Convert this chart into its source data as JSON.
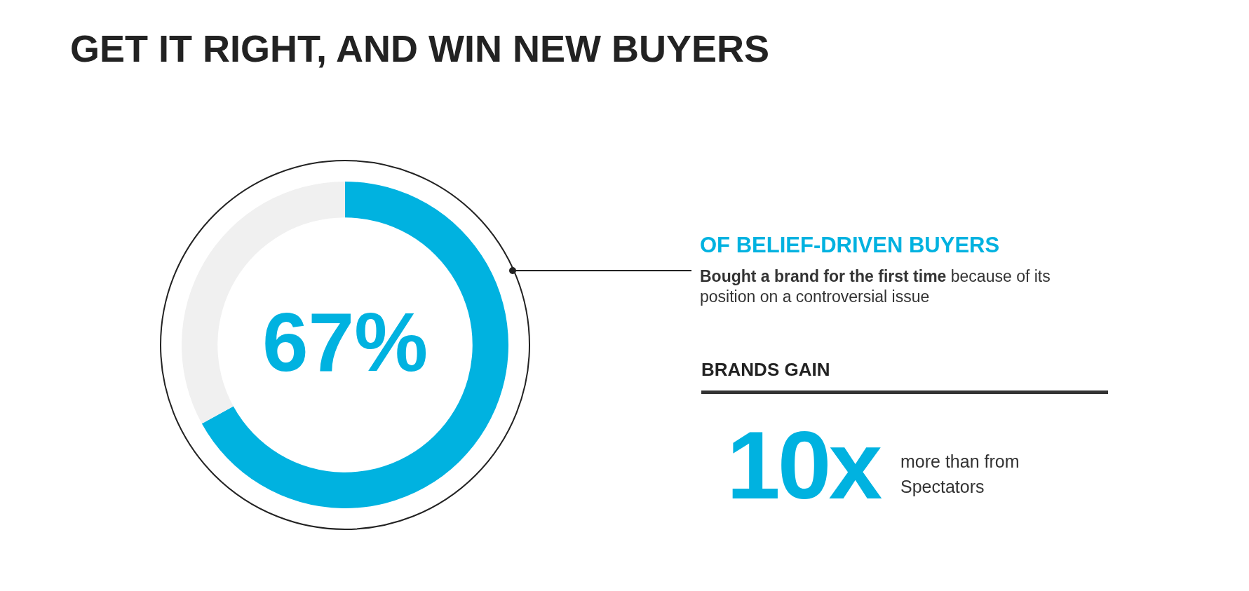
{
  "chart_data": {
    "type": "donut",
    "title": "GET IT RIGHT, AND WIN NEW BUYERS",
    "categories": [
      null,
      null
    ],
    "values": [
      67,
      33
    ],
    "colors": [
      "#00b2e0",
      "#f0f0f0"
    ],
    "value_labels": [
      "67%",
      null
    ],
    "legend": false,
    "annotations": [
      "OF BELIEF-DRIVEN BUYERS",
      "Bought a brand for the first time",
      "because of its position on a controversial issue",
      "BRANDS GAIN",
      "10x",
      "more than from Spectators"
    ]
  }
}
